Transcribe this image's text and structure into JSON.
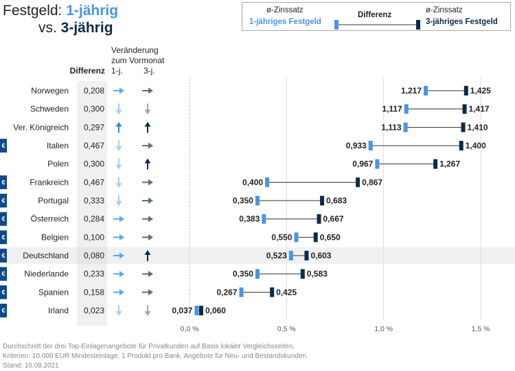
{
  "title": {
    "prefix": "Festgeld: ",
    "highlight1": "1-jährig",
    "line2_prefix": "vs. ",
    "highlight2": "3-jährig"
  },
  "legend": {
    "left_sub": "ø-Zinssatz",
    "left_main": "1-jähriges Festgeld",
    "middle": "Differenz",
    "right_sub": "ø-Zinssatz",
    "right_main": "3-jähriges Festgeld"
  },
  "headers": {
    "differenz": "Differenz",
    "change_title_1": "Veränderung",
    "change_title_2": "zum Vormonat",
    "col_1j": "1-j.",
    "col_3j": "3-j."
  },
  "colors": {
    "one_year": "#4a94e8",
    "three_year": "#0d2b48",
    "euro_badge": "#0d4a8c",
    "arrow_up_1j": "#2f86e8",
    "arrow_up_3j": "#0d2b48",
    "arrow_right_1j": "#5aa6f0",
    "arrow_right_3j": "#5b6e80",
    "arrow_down_1j": "#a9cdf4",
    "arrow_down_3j": "#9aa8b6",
    "highlight_row": "#f0f0f0",
    "differenz_col": "#f0f0f0"
  },
  "chart_data": {
    "type": "dumbbell",
    "unit": "%",
    "xlim": [
      0,
      1.5
    ],
    "xticks": [
      "0,0 %",
      "0,5 %",
      "1,0 %",
      "1,5 %"
    ],
    "xtick_values": [
      0,
      0.5,
      1.0,
      1.5
    ],
    "grid": "vertical",
    "highlighted_country": "Deutschland",
    "rows": [
      {
        "country": "Norwegen",
        "euro": false,
        "diff": "0,208",
        "chg_1j": "right",
        "chg_3j": "right",
        "v1": 1.217,
        "v3": 1.425,
        "v1_label": "1,217",
        "v3_label": "1,425"
      },
      {
        "country": "Schweden",
        "euro": false,
        "diff": "0,300",
        "chg_1j": "down",
        "chg_3j": "down",
        "v1": 1.117,
        "v3": 1.417,
        "v1_label": "1,117",
        "v3_label": "1,417"
      },
      {
        "country": "Ver. Königreich",
        "euro": false,
        "diff": "0,297",
        "chg_1j": "up",
        "chg_3j": "up",
        "v1": 1.113,
        "v3": 1.41,
        "v1_label": "1,113",
        "v3_label": "1,410"
      },
      {
        "country": "Italien",
        "euro": true,
        "diff": "0,467",
        "chg_1j": "down",
        "chg_3j": "right",
        "v1": 0.933,
        "v3": 1.4,
        "v1_label": "0,933",
        "v3_label": "1,400"
      },
      {
        "country": "Polen",
        "euro": false,
        "diff": "0,300",
        "chg_1j": "down",
        "chg_3j": "up",
        "v1": 0.967,
        "v3": 1.267,
        "v1_label": "0,967",
        "v3_label": "1,267"
      },
      {
        "country": "Frankreich",
        "euro": true,
        "diff": "0,467",
        "chg_1j": "down",
        "chg_3j": "right",
        "v1": 0.4,
        "v3": 0.867,
        "v1_label": "0,400",
        "v3_label": "0,867"
      },
      {
        "country": "Portugal",
        "euro": true,
        "diff": "0,333",
        "chg_1j": "down",
        "chg_3j": "right",
        "v1": 0.35,
        "v3": 0.683,
        "v1_label": "0,350",
        "v3_label": "0,683"
      },
      {
        "country": "Österreich",
        "euro": true,
        "diff": "0,284",
        "chg_1j": "right",
        "chg_3j": "right",
        "v1": 0.383,
        "v3": 0.667,
        "v1_label": "0,383",
        "v3_label": "0,667"
      },
      {
        "country": "Belgien",
        "euro": true,
        "diff": "0,100",
        "chg_1j": "right",
        "chg_3j": "right",
        "v1": 0.55,
        "v3": 0.65,
        "v1_label": "0,550",
        "v3_label": "0,650"
      },
      {
        "country": "Deutschland",
        "euro": true,
        "diff": "0,080",
        "chg_1j": "right",
        "chg_3j": "up",
        "v1": 0.523,
        "v3": 0.603,
        "v1_label": "0,523",
        "v3_label": "0,603"
      },
      {
        "country": "Niederlande",
        "euro": true,
        "diff": "0,233",
        "chg_1j": "right",
        "chg_3j": "right",
        "v1": 0.35,
        "v3": 0.583,
        "v1_label": "0,350",
        "v3_label": "0,583"
      },
      {
        "country": "Spanien",
        "euro": true,
        "diff": "0,158",
        "chg_1j": "right",
        "chg_3j": "right",
        "v1": 0.267,
        "v3": 0.425,
        "v1_label": "0,267",
        "v3_label": "0,425"
      },
      {
        "country": "Irland",
        "euro": true,
        "diff": "0,023",
        "chg_1j": "down",
        "chg_3j": "down",
        "v1": 0.037,
        "v3": 0.06,
        "v1_label": "0,037",
        "v3_label": "0,060"
      }
    ]
  },
  "footer": {
    "line1": "Durchschnitt der drei Top-Einlagenangebote für Privatkunden auf Basis lokaler Vergleichsseiten.",
    "line2": "Kriterien: 10.000 EUR Mindesteinlage, 1 Produkt pro Bank, Angebote für Neu- und Bestandskunden.",
    "line3": "Stand: 10.08.2021"
  }
}
